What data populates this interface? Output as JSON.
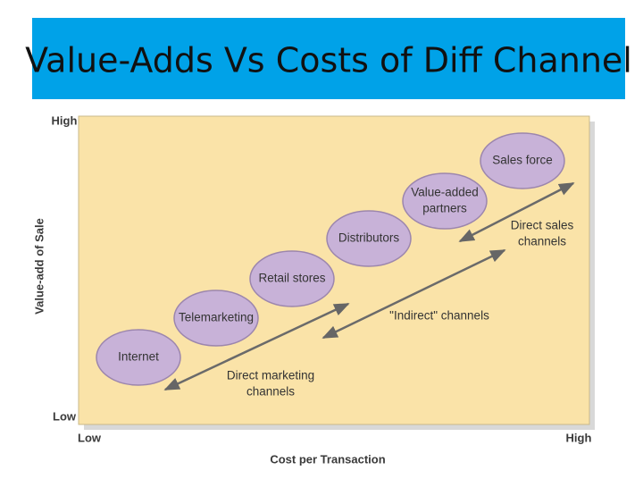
{
  "header": {
    "title": "Value-Adds Vs Costs of Diff Channel"
  },
  "y_axis": {
    "label": "Value-add of Sale",
    "high": "High",
    "low": "Low"
  },
  "x_axis": {
    "label": "Cost per Transaction",
    "low": "Low",
    "high": "High"
  },
  "nodes": [
    {
      "lines": [
        "Internet"
      ]
    },
    {
      "lines": [
        "Telemarketing"
      ]
    },
    {
      "lines": [
        "Retail stores"
      ]
    },
    {
      "lines": [
        "Distributors"
      ]
    },
    {
      "lines": [
        "Value-added",
        "partners"
      ]
    },
    {
      "lines": [
        "Sales force"
      ]
    }
  ],
  "arrows": [
    {
      "lines": [
        "Direct marketing",
        "channels"
      ]
    },
    {
      "lines": [
        "\"Indirect\" channels"
      ]
    },
    {
      "lines": [
        "Direct sales",
        "channels"
      ]
    }
  ]
}
